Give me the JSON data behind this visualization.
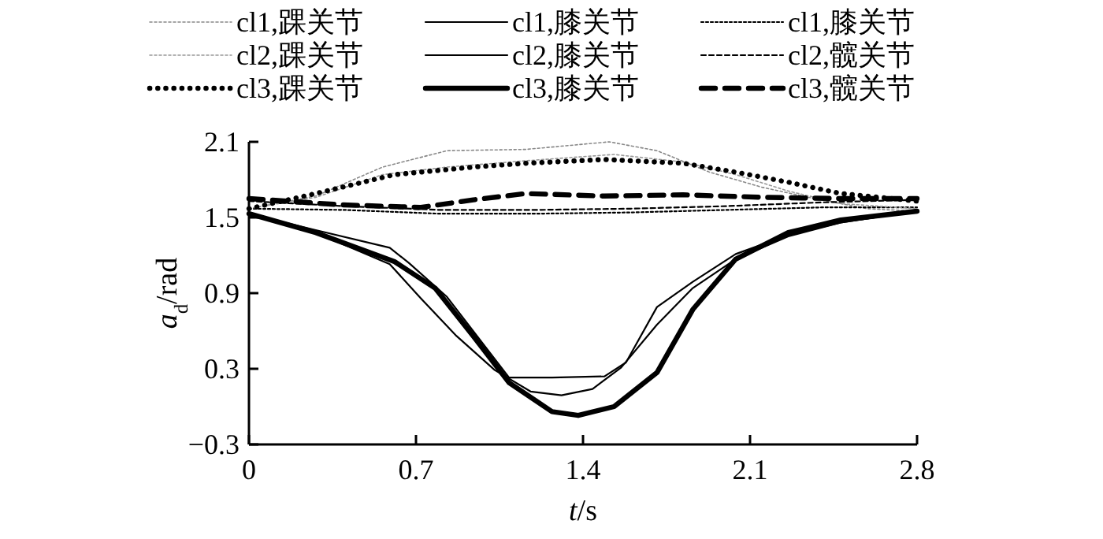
{
  "chart_data": {
    "type": "line",
    "xlabel": "t/s",
    "ylabel": "a$_{d}$/rad",
    "legend": "top",
    "xlim": [
      0,
      2.8
    ],
    "ylim": [
      -0.3,
      2.1
    ],
    "xticks": [
      0,
      0.7,
      1.4,
      2.1,
      2.8
    ],
    "yticks": [
      -0.3,
      0.3,
      0.9,
      1.5,
      2.1
    ],
    "series": [
      {
        "name": "cl1,踝关节",
        "color": "#888888",
        "line_style": "dotted",
        "x": [
          0,
          0.28,
          0.56,
          0.83,
          1.16,
          1.51,
          1.71,
          1.93,
          2.15,
          2.37,
          2.59,
          2.8
        ],
        "values": [
          1.57,
          1.67,
          1.9,
          2.03,
          2.04,
          2.1,
          2.03,
          1.86,
          1.74,
          1.65,
          1.57,
          1.55
        ]
      },
      {
        "name": "cl1,膝关节",
        "color": "#000000",
        "line_style": "solid",
        "x": [
          0,
          0.28,
          0.59,
          0.67,
          0.83,
          0.98,
          1.09,
          1.27,
          1.49,
          1.58,
          1.71,
          1.86,
          2.04,
          2.26,
          2.48,
          2.8
        ],
        "values": [
          1.53,
          1.4,
          1.26,
          1.14,
          0.87,
          0.5,
          0.23,
          0.23,
          0.24,
          0.35,
          0.79,
          0.99,
          1.21,
          1.36,
          1.46,
          1.55
        ]
      },
      {
        "name": "cl1,膝关节",
        "color": "#000000",
        "line_style": "dotted",
        "x": [
          0,
          0.4,
          0.8,
          1.2,
          1.6,
          2.0,
          2.4,
          2.8
        ],
        "values": [
          1.57,
          1.56,
          1.53,
          1.53,
          1.54,
          1.56,
          1.58,
          1.58
        ]
      },
      {
        "name": "cl2,踝关节",
        "color": "#999999",
        "line_style": "dotted",
        "x": [
          0,
          0.28,
          0.56,
          0.83,
          1.16,
          1.53,
          1.82,
          2.04,
          2.26,
          2.48,
          2.8
        ],
        "values": [
          1.57,
          1.66,
          1.84,
          1.9,
          1.95,
          2.0,
          1.94,
          1.84,
          1.71,
          1.61,
          1.57
        ]
      },
      {
        "name": "cl2,膝关节",
        "color": "#000000",
        "line_style": "solid",
        "x": [
          0,
          0.28,
          0.59,
          0.72,
          0.87,
          1.03,
          1.18,
          1.31,
          1.44,
          1.56,
          1.71,
          1.86,
          2.04,
          2.26,
          2.48,
          2.8
        ],
        "values": [
          1.53,
          1.38,
          1.13,
          0.86,
          0.56,
          0.29,
          0.12,
          0.09,
          0.14,
          0.31,
          0.65,
          0.94,
          1.17,
          1.35,
          1.46,
          1.55
        ]
      },
      {
        "name": "cl2,髋关节",
        "color": "#000000",
        "line_style": "dashed",
        "x": [
          0,
          0.4,
          0.8,
          1.2,
          1.6,
          2.0,
          2.4,
          2.8
        ],
        "values": [
          1.63,
          1.59,
          1.56,
          1.56,
          1.57,
          1.59,
          1.62,
          1.64
        ]
      },
      {
        "name": "cl3,踝关节",
        "color": "#000000",
        "line_style": "dotted",
        "x": [
          0,
          0.28,
          0.61,
          0.94,
          1.16,
          1.49,
          1.82,
          2.04,
          2.26,
          2.48,
          2.8
        ],
        "values": [
          1.57,
          1.69,
          1.84,
          1.9,
          1.93,
          1.96,
          1.93,
          1.86,
          1.78,
          1.69,
          1.63
        ]
      },
      {
        "name": "cl3,膝关节",
        "color": "#000000",
        "line_style": "solid",
        "x": [
          0,
          0.28,
          0.61,
          0.78,
          0.94,
          1.09,
          1.27,
          1.38,
          1.53,
          1.71,
          1.86,
          2.04,
          2.26,
          2.48,
          2.8
        ],
        "values": [
          1.53,
          1.38,
          1.15,
          0.94,
          0.56,
          0.19,
          -0.04,
          -0.07,
          0.0,
          0.27,
          0.77,
          1.17,
          1.38,
          1.48,
          1.55
        ]
      },
      {
        "name": "cl3,髋关节",
        "color": "#000000",
        "line_style": "dashed",
        "x": [
          0,
          0.39,
          0.72,
          0.94,
          1.16,
          1.49,
          1.82,
          2.15,
          2.48,
          2.8
        ],
        "values": [
          1.65,
          1.6,
          1.58,
          1.64,
          1.69,
          1.67,
          1.68,
          1.66,
          1.65,
          1.65
        ]
      }
    ]
  }
}
